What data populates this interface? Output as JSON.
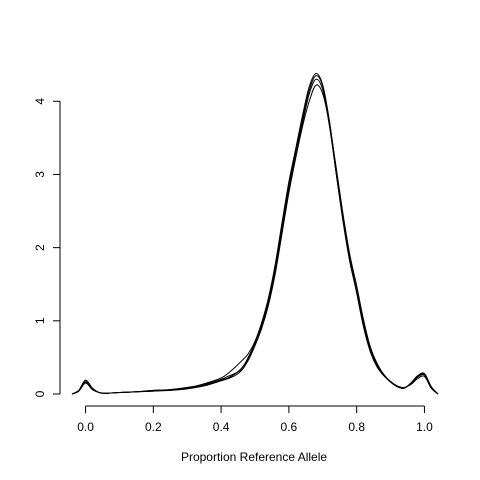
{
  "chart_data": {
    "type": "line",
    "title": "",
    "xlabel": "Proportion Reference Allele",
    "ylabel": "",
    "xlim": [
      -0.04,
      1.04
    ],
    "ylim": [
      0,
      4.4
    ],
    "grid": false,
    "legend": "none",
    "x_ticks": [
      0.0,
      0.2,
      0.4,
      0.6,
      0.8,
      1.0
    ],
    "x_tick_labels": [
      "0.0",
      "0.2",
      "0.4",
      "0.6",
      "0.8",
      "1.0"
    ],
    "y_ticks": [
      0,
      1,
      2,
      3,
      4
    ],
    "y_tick_labels": [
      "0",
      "1",
      "2",
      "3",
      "4"
    ],
    "line_color": "#000000",
    "series": [
      {
        "x": [
          -0.04,
          -0.02,
          0.0,
          0.02,
          0.04,
          0.06,
          0.1,
          0.15,
          0.2,
          0.25,
          0.3,
          0.35,
          0.4,
          0.42,
          0.44,
          0.46,
          0.48,
          0.5,
          0.52,
          0.54,
          0.56,
          0.58,
          0.6,
          0.62,
          0.64,
          0.66,
          0.68,
          0.7,
          0.72,
          0.74,
          0.76,
          0.78,
          0.8,
          0.82,
          0.84,
          0.86,
          0.88,
          0.9,
          0.92,
          0.94,
          0.96,
          0.98,
          1.0,
          1.02,
          1.04
        ],
        "values": [
          0.0,
          0.05,
          0.18,
          0.08,
          0.02,
          0.01,
          0.02,
          0.03,
          0.05,
          0.06,
          0.09,
          0.13,
          0.2,
          0.24,
          0.28,
          0.34,
          0.5,
          0.7,
          0.95,
          1.3,
          1.75,
          2.3,
          2.85,
          3.3,
          3.75,
          4.15,
          4.35,
          4.2,
          3.7,
          3.0,
          2.35,
          1.8,
          1.4,
          0.95,
          0.6,
          0.38,
          0.25,
          0.17,
          0.1,
          0.08,
          0.15,
          0.25,
          0.28,
          0.1,
          0.0
        ]
      },
      {
        "x": [
          -0.04,
          -0.02,
          0.0,
          0.02,
          0.04,
          0.06,
          0.1,
          0.15,
          0.2,
          0.25,
          0.3,
          0.35,
          0.4,
          0.42,
          0.44,
          0.46,
          0.48,
          0.5,
          0.52,
          0.54,
          0.56,
          0.58,
          0.6,
          0.62,
          0.64,
          0.66,
          0.68,
          0.7,
          0.72,
          0.74,
          0.76,
          0.78,
          0.8,
          0.82,
          0.84,
          0.86,
          0.88,
          0.9,
          0.92,
          0.94,
          0.96,
          0.98,
          1.0,
          1.02,
          1.04
        ],
        "values": [
          0.0,
          0.04,
          0.16,
          0.07,
          0.02,
          0.01,
          0.02,
          0.03,
          0.04,
          0.06,
          0.08,
          0.12,
          0.19,
          0.22,
          0.27,
          0.35,
          0.48,
          0.68,
          0.92,
          1.25,
          1.7,
          2.25,
          2.8,
          3.28,
          3.7,
          4.1,
          4.3,
          4.15,
          3.65,
          3.0,
          2.38,
          1.85,
          1.42,
          0.98,
          0.62,
          0.4,
          0.26,
          0.16,
          0.1,
          0.08,
          0.14,
          0.23,
          0.26,
          0.09,
          0.0
        ]
      },
      {
        "x": [
          -0.04,
          -0.02,
          0.0,
          0.02,
          0.04,
          0.06,
          0.1,
          0.15,
          0.2,
          0.25,
          0.3,
          0.35,
          0.4,
          0.42,
          0.44,
          0.46,
          0.48,
          0.5,
          0.52,
          0.54,
          0.56,
          0.58,
          0.6,
          0.62,
          0.64,
          0.66,
          0.68,
          0.7,
          0.72,
          0.74,
          0.76,
          0.78,
          0.8,
          0.82,
          0.84,
          0.86,
          0.88,
          0.9,
          0.92,
          0.94,
          0.96,
          0.98,
          1.0,
          1.02,
          1.04
        ],
        "values": [
          0.0,
          0.05,
          0.19,
          0.08,
          0.02,
          0.01,
          0.02,
          0.03,
          0.05,
          0.05,
          0.08,
          0.14,
          0.22,
          0.28,
          0.36,
          0.45,
          0.55,
          0.72,
          0.98,
          1.32,
          1.78,
          2.35,
          2.9,
          3.35,
          3.8,
          4.2,
          4.38,
          4.22,
          3.72,
          3.05,
          2.4,
          1.82,
          1.38,
          0.92,
          0.58,
          0.37,
          0.25,
          0.17,
          0.1,
          0.08,
          0.15,
          0.24,
          0.27,
          0.1,
          0.0
        ]
      },
      {
        "x": [
          -0.04,
          -0.02,
          0.0,
          0.02,
          0.04,
          0.06,
          0.1,
          0.15,
          0.2,
          0.25,
          0.3,
          0.35,
          0.4,
          0.42,
          0.44,
          0.46,
          0.48,
          0.5,
          0.52,
          0.54,
          0.56,
          0.58,
          0.6,
          0.62,
          0.64,
          0.66,
          0.68,
          0.7,
          0.72,
          0.74,
          0.76,
          0.78,
          0.8,
          0.82,
          0.84,
          0.86,
          0.88,
          0.9,
          0.92,
          0.94,
          0.96,
          0.98,
          1.0,
          1.02,
          1.04
        ],
        "values": [
          0.0,
          0.04,
          0.15,
          0.06,
          0.02,
          0.01,
          0.02,
          0.03,
          0.04,
          0.05,
          0.07,
          0.11,
          0.18,
          0.21,
          0.25,
          0.32,
          0.46,
          0.66,
          0.9,
          1.22,
          1.65,
          2.2,
          2.75,
          3.22,
          3.65,
          4.0,
          4.22,
          4.1,
          3.68,
          3.08,
          2.45,
          1.9,
          1.48,
          1.02,
          0.65,
          0.42,
          0.27,
          0.17,
          0.11,
          0.09,
          0.13,
          0.21,
          0.24,
          0.08,
          0.0
        ]
      }
    ]
  }
}
